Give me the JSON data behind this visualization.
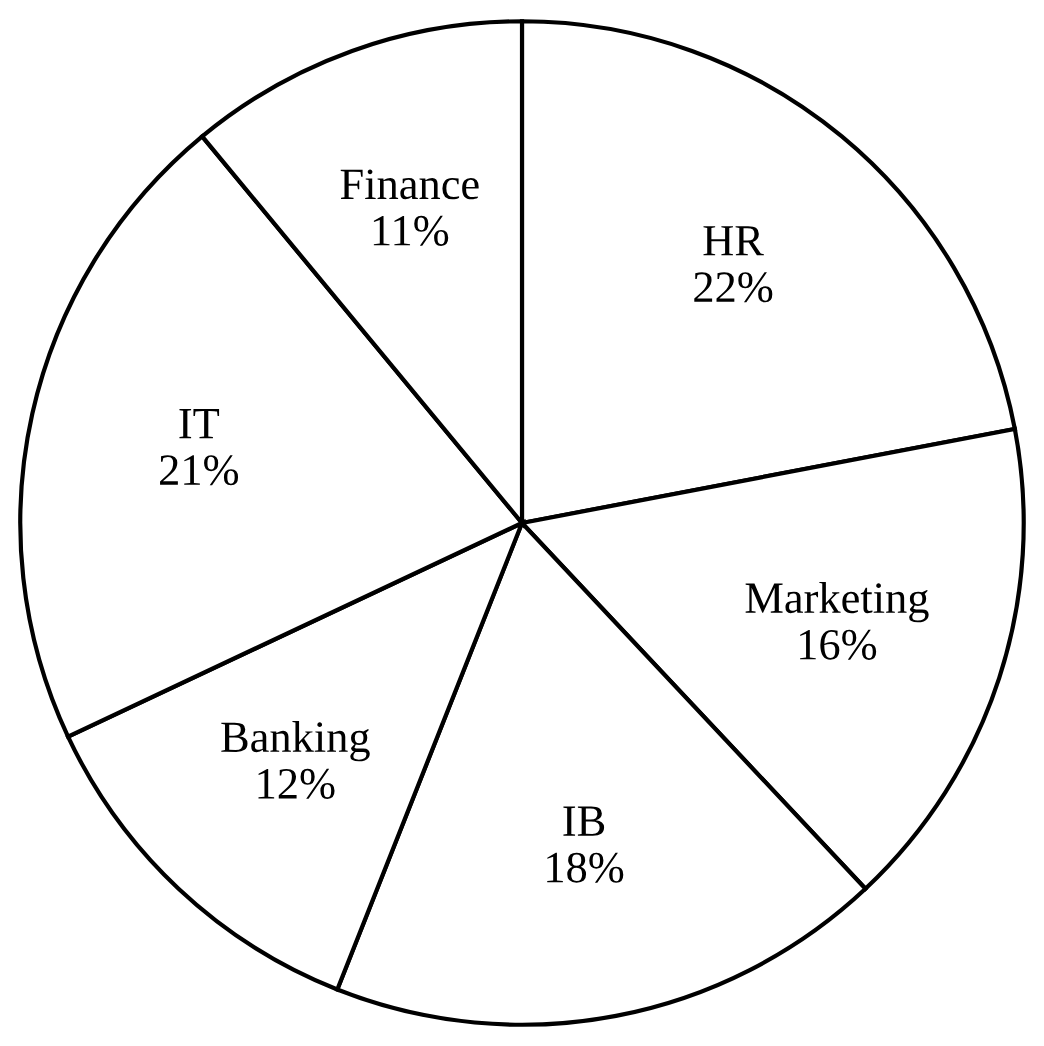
{
  "chart_data": {
    "type": "pie",
    "categories": [
      "HR",
      "Marketing",
      "IB",
      "Banking",
      "IT",
      "Finance"
    ],
    "values": [
      22,
      16,
      18,
      12,
      21,
      11
    ],
    "value_labels": [
      "22%",
      "16%",
      "18%",
      "12%",
      "21%",
      "11%"
    ],
    "colors": [
      "#ffffff",
      "#ffffff",
      "#ffffff",
      "#ffffff",
      "#ffffff",
      "#ffffff"
    ]
  }
}
